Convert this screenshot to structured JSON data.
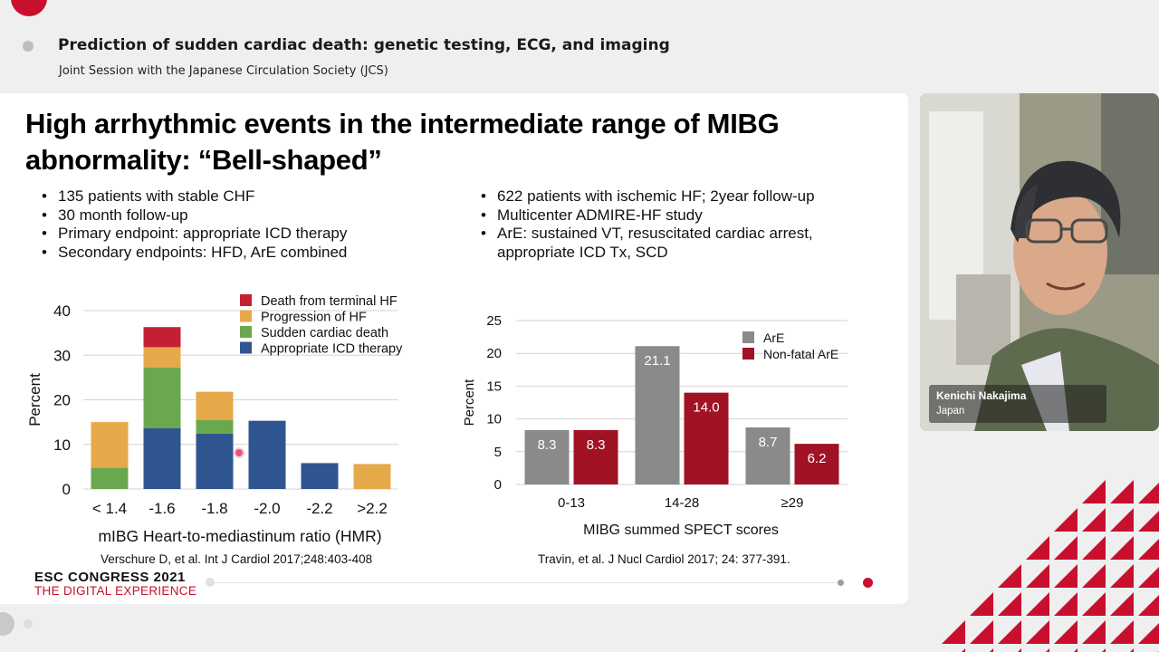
{
  "session": {
    "title": "Prediction of sudden cardiac death: genetic testing, ECG, and imaging",
    "subtitle": "Joint Session with the Japanese Circulation Society (JCS)"
  },
  "slide": {
    "title": "High arrhythmic events in the intermediate range of MIBG abnormality: “Bell-shaped”",
    "left_bullets": [
      "135 patients with stable CHF",
      "30 month follow-up",
      "Primary endpoint: appropriate ICD therapy",
      "Secondary endpoints: HFD, ArE combined"
    ],
    "right_bullets": [
      "622 patients with ischemic HF; 2year follow-up",
      "Multicenter ADMIRE-HF study",
      "ArE: sustained VT, resuscitated cardiac arrest, appropriate ICD Tx, SCD"
    ],
    "left_reference": "Verschure D, et al. Int J Cardiol 2017;248:403-408",
    "right_reference": "Travin, et al. J Nucl Cardiol 2017; 24: 377-391."
  },
  "branding": {
    "line1": "ESC CONGRESS 2021",
    "line2": "THE DIGITAL EXPERIENCE",
    "accent": "#c8102e"
  },
  "video": {
    "speaker_name": "Kenichi Nakajima",
    "country": "Japan"
  },
  "chart_data": [
    {
      "type": "bar",
      "stacked": true,
      "categories": [
        "< 1.4",
        "-1.6",
        "-1.8",
        "-2.0",
        "-2.2",
        ">2.2"
      ],
      "series": [
        {
          "name": "Appropriate ICD therapy",
          "color": "#2e5590",
          "values": [
            0,
            13.6,
            12.4,
            15.3,
            5.8,
            0
          ]
        },
        {
          "name": "Sudden cardiac death",
          "color": "#6aa84f",
          "values": [
            4.8,
            13.6,
            3.1,
            0,
            0,
            0
          ]
        },
        {
          "name": "Progression of HF",
          "color": "#e6a94a",
          "values": [
            10.2,
            4.6,
            6.3,
            0,
            0,
            5.6
          ]
        },
        {
          "name": "Death from terminal HF",
          "color": "#c42033",
          "values": [
            0,
            4.5,
            0,
            0,
            0,
            0
          ]
        }
      ],
      "legend_order": [
        "Death from terminal HF",
        "Progression of HF",
        "Sudden cardiac death",
        "Appropriate ICD therapy"
      ],
      "xlabel": "mIBG Heart-to-mediastinum ratio (HMR)",
      "ylabel": "Percent",
      "ylim": [
        0,
        40
      ],
      "yticks": [
        0,
        10,
        20,
        30,
        40
      ],
      "grid": true,
      "legend_position": "top-right"
    },
    {
      "type": "bar",
      "categories": [
        "0-13",
        "14-28",
        "≥29"
      ],
      "series": [
        {
          "name": "ArE",
          "color": "#8a8a8a",
          "values": [
            8.3,
            21.1,
            8.7
          ]
        },
        {
          "name": "Non-fatal ArE",
          "color": "#a01224",
          "values": [
            8.3,
            14.0,
            6.2
          ]
        }
      ],
      "data_labels": [
        [
          "8.3",
          "21.1",
          "8.7"
        ],
        [
          "8.3",
          "14.0",
          "6.2"
        ]
      ],
      "xlabel": "MIBG summed SPECT  scores",
      "ylabel": "Percent",
      "ylim": [
        0,
        25
      ],
      "yticks": [
        0,
        5,
        10,
        15,
        20,
        25
      ],
      "grid": true,
      "legend_position": "top-right"
    }
  ]
}
